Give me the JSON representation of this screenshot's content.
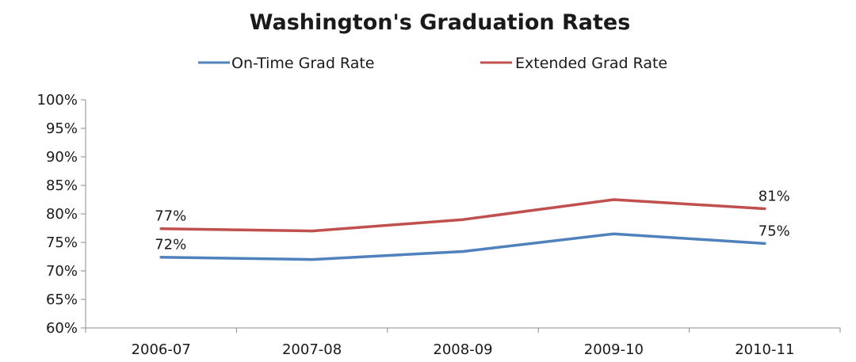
{
  "chart_data": {
    "type": "line",
    "title": "Washington's  Graduation  Rates",
    "xlabel": "",
    "ylabel": "",
    "categories": [
      "2006-07",
      "2007-08",
      "2008-09",
      "2009-10",
      "2010-11"
    ],
    "ylim": [
      60,
      100
    ],
    "ytick_step": 5,
    "ytick_labels": [
      "60%",
      "65%",
      "70%",
      "75%",
      "80%",
      "85%",
      "90%",
      "95%",
      "100%"
    ],
    "grid": false,
    "legend_position": "top",
    "series": [
      {
        "name": "On-Time Grad Rate",
        "color": "#4f81bd",
        "values": [
          72.4,
          72.0,
          73.4,
          76.5,
          74.8
        ],
        "data_labels": [
          {
            "index": 0,
            "text": "72%"
          },
          {
            "index": 4,
            "text": "75%"
          }
        ]
      },
      {
        "name": "Extended Grad Rate",
        "color": "#c0504d",
        "values": [
          77.4,
          77.0,
          79.0,
          82.5,
          80.9
        ],
        "data_labels": [
          {
            "index": 0,
            "text": "77%"
          },
          {
            "index": 4,
            "text": "81%"
          }
        ]
      }
    ]
  }
}
